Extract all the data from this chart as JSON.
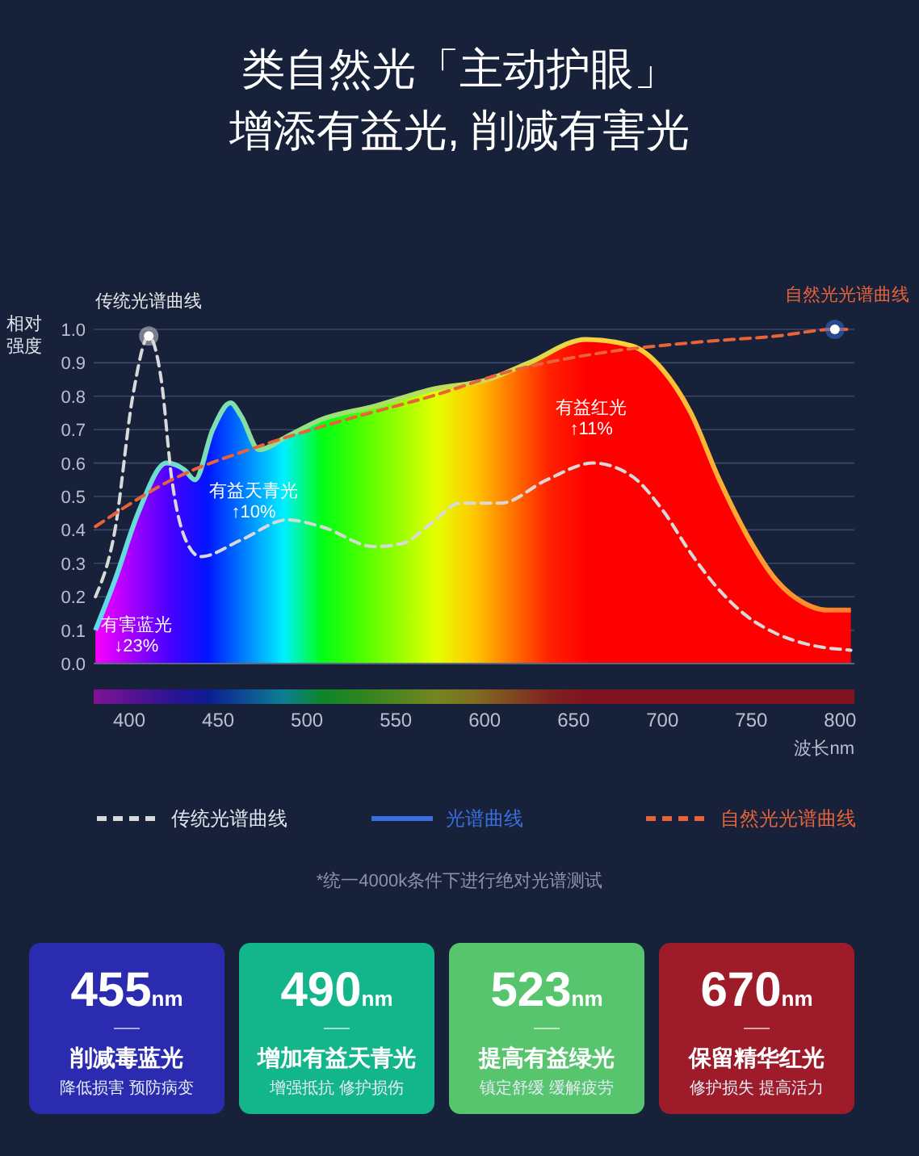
{
  "chart_data": [
    {
      "type": "line",
      "title": "类自然光「主动护眼」",
      "subtitle": "增添有益光, 削减有害光",
      "xlabel": "波长nm",
      "ylabel": "相对强度",
      "xlim": [
        380,
        808
      ],
      "xticks": [
        400,
        450,
        500,
        550,
        600,
        650,
        700,
        750,
        800
      ],
      "ylim": [
        0,
        1.0
      ],
      "yticks": [
        {
          "value": 0,
          "label": "0.0"
        },
        0.1,
        0.2,
        0.3,
        0.4,
        0.5,
        0.6,
        0.7,
        0.8,
        0.9,
        {
          "value": 1.0,
          "label": "1.0"
        }
      ],
      "grid": "y",
      "legend": "bottom",
      "marker": "none",
      "series": [
        {
          "name": "传统光谱曲线",
          "type": "line",
          "line_style": "dashed",
          "color": "#d9d9d9",
          "x": [
            381,
            392,
            402,
            411,
            418,
            424,
            431,
            440,
            463,
            489,
            508,
            538,
            554,
            570,
            586,
            609,
            635,
            661,
            683,
            700,
            716,
            732,
            748,
            764,
            780,
            806
          ],
          "values": [
            0.2,
            0.4,
            0.8,
            0.98,
            0.85,
            0.55,
            0.38,
            0.32,
            0.37,
            0.43,
            0.41,
            0.35,
            0.36,
            0.42,
            0.48,
            0.48,
            0.55,
            0.6,
            0.56,
            0.46,
            0.33,
            0.22,
            0.14,
            0.09,
            0.06,
            0.04
          ]
        },
        {
          "name": "光谱曲线",
          "type": "area",
          "color": "#3a6fe0",
          "x": [
            381,
            392,
            405,
            421,
            431,
            437,
            447,
            457,
            463,
            473,
            489,
            508,
            538,
            570,
            602,
            625,
            657,
            683,
            700,
            716,
            732,
            748,
            764,
            780,
            793,
            806
          ],
          "values": [
            0.1,
            0.25,
            0.45,
            0.6,
            0.58,
            0.55,
            0.7,
            0.78,
            0.74,
            0.64,
            0.68,
            0.73,
            0.77,
            0.82,
            0.85,
            0.9,
            0.97,
            0.95,
            0.88,
            0.75,
            0.55,
            0.38,
            0.25,
            0.18,
            0.16,
            0.16
          ]
        },
        {
          "name": "自然光光谱曲线",
          "type": "line",
          "line_style": "dashed",
          "color": "#e8623a",
          "x": [
            381,
            424,
            473,
            522,
            570,
            618,
            666,
            716,
            764,
            797,
            806
          ],
          "values": [
            0.41,
            0.55,
            0.65,
            0.73,
            0.8,
            0.88,
            0.93,
            0.96,
            0.98,
            1.0,
            1.0
          ]
        }
      ],
      "annotations": [
        {
          "text": "传统光谱曲线",
          "x": 411,
          "y": 0.98
        },
        {
          "text": "自然光光谱曲线",
          "x": 797,
          "y": 1.0
        },
        "有害蓝光\n↓23%",
        "有益天青光\n↑10%",
        "有益红光\n↑11%",
        "*统一4000k条件下进行绝对光谱测试"
      ]
    },
    {
      "type": "other",
      "colors": [
        "#2b2bb0",
        "#13b58a",
        "#57c46e",
        "#9e1b2a"
      ],
      "annotations": [
        "455nm",
        "削减毒蓝光",
        "降低损害 预防病变",
        "490nm",
        "增加有益天青光",
        "增强抵抗 修护损伤",
        "523nm",
        "提高有益绿光",
        "镇定舒缓 缓解疲劳",
        "670nm",
        "保留精华红光",
        "修护损失 提高活力"
      ]
    }
  ]
}
